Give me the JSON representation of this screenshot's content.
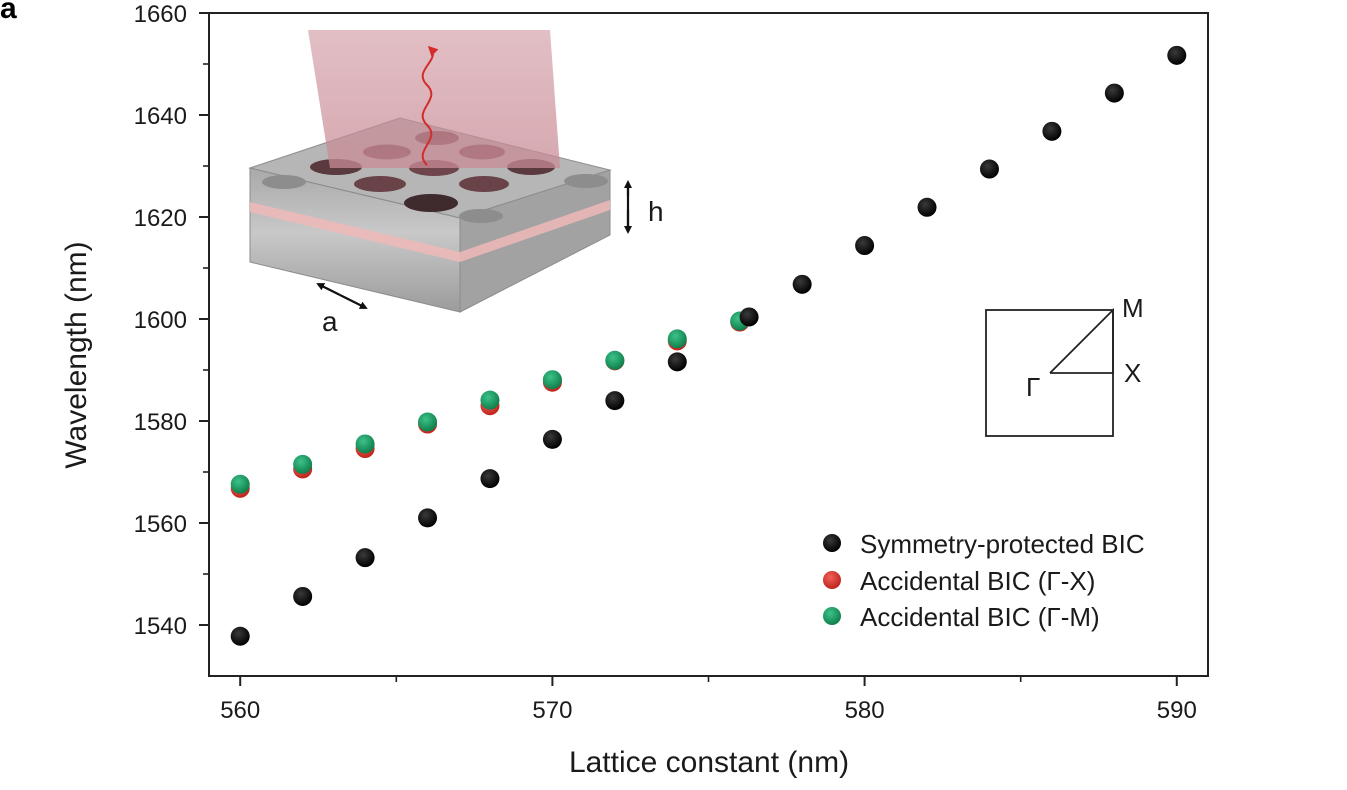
{
  "panel_label": "a",
  "chart_data": {
    "type": "scatter",
    "title": "",
    "xlabel": "Lattice constant (nm)",
    "ylabel": "Wavelength (nm)",
    "xlim": [
      559,
      591
    ],
    "ylim": [
      1530,
      1660
    ],
    "x_ticks": [
      560,
      570,
      580,
      590
    ],
    "x_minor_ticks": [
      565,
      575,
      585
    ],
    "y_ticks": [
      1540,
      1560,
      1580,
      1600,
      1620,
      1640,
      1660
    ],
    "y_minor_ticks": [
      1550,
      1570,
      1590,
      1610,
      1630,
      1650
    ],
    "grid": false,
    "legend_position": "bottom-right",
    "series": [
      {
        "name": "Symmetry-protected BIC",
        "color": "#000000",
        "points": [
          [
            560,
            1537.8
          ],
          [
            562,
            1545.6
          ],
          [
            564,
            1553.2
          ],
          [
            566,
            1561.0
          ],
          [
            568,
            1568.7
          ],
          [
            570,
            1576.4
          ],
          [
            572,
            1584.0
          ],
          [
            574,
            1591.6
          ],
          [
            576.3,
            1600.4
          ],
          [
            578,
            1606.8
          ],
          [
            580,
            1614.4
          ],
          [
            582,
            1621.9
          ],
          [
            584,
            1629.4
          ],
          [
            586,
            1636.8
          ],
          [
            588,
            1644.3
          ],
          [
            590,
            1651.7
          ]
        ]
      },
      {
        "name": "Accidental BIC (Γ-X)",
        "color": "#d9352b",
        "points": [
          [
            560,
            1566.8
          ],
          [
            562,
            1570.6
          ],
          [
            564,
            1574.6
          ],
          [
            566,
            1579.4
          ],
          [
            568,
            1583.0
          ],
          [
            570,
            1587.6
          ],
          [
            572,
            1591.8
          ],
          [
            574,
            1595.7
          ],
          [
            576,
            1599.4
          ]
        ]
      },
      {
        "name": "Accidental BIC (Γ-M)",
        "color": "#1a9a5e",
        "points": [
          [
            560,
            1567.6
          ],
          [
            562,
            1571.5
          ],
          [
            564,
            1575.5
          ],
          [
            566,
            1579.8
          ],
          [
            568,
            1584.1
          ],
          [
            570,
            1588.1
          ],
          [
            572,
            1591.9
          ],
          [
            574,
            1596.1
          ],
          [
            576,
            1599.6
          ]
        ]
      }
    ],
    "annotations": {
      "height_label": "h",
      "lattice_label": "a",
      "bz_gamma": "Γ",
      "bz_x": "X",
      "bz_m": "M"
    }
  }
}
